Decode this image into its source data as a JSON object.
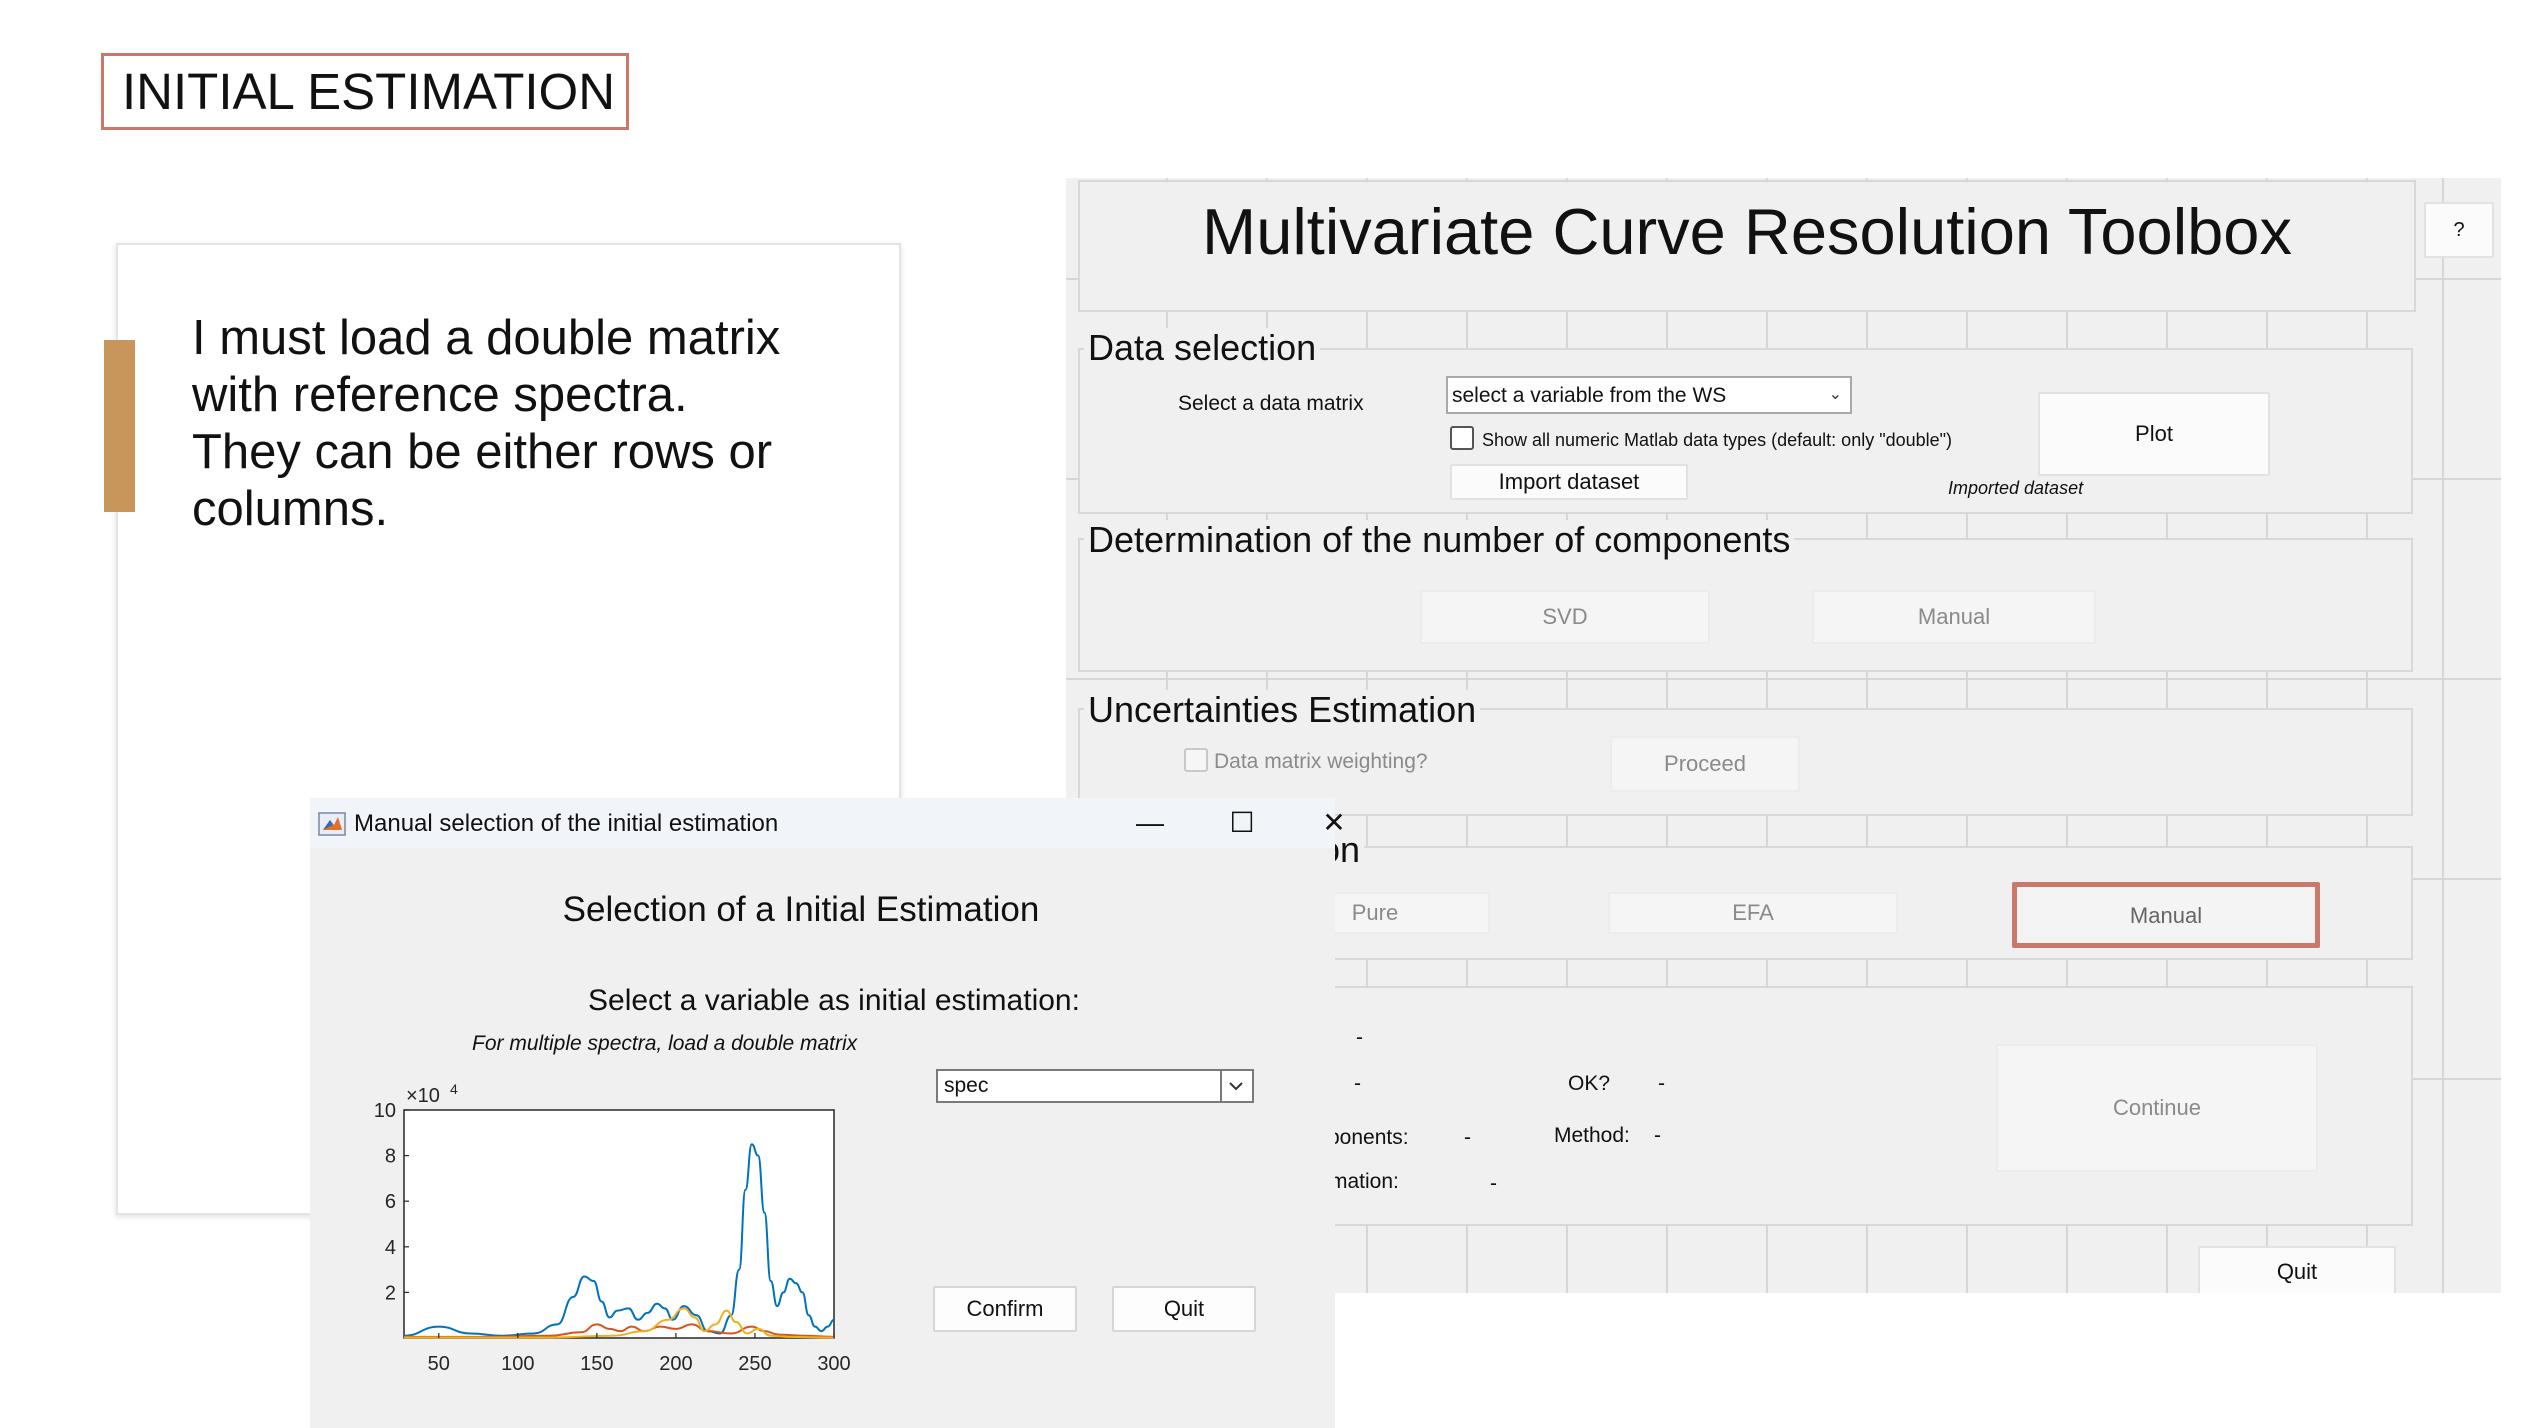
{
  "slide": {
    "title": "INITIAL ESTIMATION",
    "card_lines": [
      "I must load a double matrix",
      "with reference spectra.",
      "They can be either rows or",
      "columns."
    ],
    "accent_color": "#c8965a",
    "highlight_color": "#c9786c"
  },
  "mcr": {
    "title": "Multivariate Curve Resolution Toolbox",
    "help_label": "?",
    "data_selection": {
      "title": "Data selection",
      "select_label": "Select a data matrix",
      "dropdown_value": "select a variable from the WS",
      "checkbox_label": "Show all numeric Matlab data types (default: only \"double\")",
      "import_label": "Import dataset",
      "plot_label": "Plot",
      "imported_label": "Imported dataset"
    },
    "components": {
      "title": "Determination of the number of components",
      "svd_label": "SVD",
      "manual_label": "Manual"
    },
    "uncertainties": {
      "title": "Uncertainties Estimation",
      "weighting_label": "Data matrix weighting?",
      "proceed_label": "Proceed"
    },
    "initial": {
      "title_fragment": "on",
      "pure_label": "Pure",
      "efa_label": "EFA",
      "manual_label": "Manual"
    },
    "summary": {
      "dash1": "-",
      "dash2": "-",
      "ok_label": "OK?",
      "ok_value": "-",
      "components_label": "ponents:",
      "components_value": "-",
      "method_label": "Method:",
      "method_value": "-",
      "estimation_label": "mation:",
      "estimation_value": "-",
      "continue_label": "Continue"
    },
    "quit_label": "Quit"
  },
  "dialog": {
    "title": "Manual selection of the initial estimation",
    "minimize": "—",
    "maximize": "☐",
    "close": "✕",
    "heading": "Selection of a Initial Estimation",
    "subheading": "Select a variable as initial estimation:",
    "hint": "For multiple spectra, load a double matrix",
    "select_value": "spec",
    "confirm_label": "Confirm",
    "quit_label": "Quit"
  },
  "chart_data": {
    "type": "line",
    "title": "",
    "xlabel": "",
    "ylabel": "",
    "exponent_label": "×10",
    "exponent_power": "4",
    "xlim": [
      28,
      300
    ],
    "ylim": [
      0,
      10
    ],
    "x_ticks": [
      50,
      100,
      150,
      200,
      250,
      300
    ],
    "y_ticks": [
      2,
      4,
      6,
      8,
      10
    ],
    "grid": false,
    "series": [
      {
        "color": "#0072bd",
        "x": [
          28,
          50,
          70,
          90,
          110,
          125,
          135,
          142,
          148,
          153,
          158,
          163,
          170,
          176,
          182,
          188,
          193,
          198,
          205,
          213,
          220,
          228,
          235,
          240,
          244,
          248,
          252,
          256,
          260,
          264,
          268,
          272,
          276,
          280,
          284,
          288,
          292,
          296,
          300
        ],
        "y": [
          0.1,
          0.5,
          0.2,
          0.1,
          0.2,
          0.6,
          1.8,
          2.7,
          2.5,
          1.6,
          0.9,
          1.2,
          1.3,
          0.8,
          1.1,
          1.5,
          1.3,
          0.8,
          1.4,
          1.0,
          0.3,
          0.2,
          1.0,
          3.0,
          6.5,
          8.5,
          8.0,
          5.5,
          2.5,
          1.4,
          2.0,
          2.6,
          2.4,
          2.0,
          1.0,
          0.5,
          0.3,
          0.5,
          0.8
        ]
      },
      {
        "color": "#d95319",
        "x": [
          28,
          80,
          120,
          140,
          150,
          158,
          165,
          172,
          180,
          190,
          200,
          210,
          220,
          235,
          248,
          256,
          265,
          280,
          300
        ],
        "y": [
          0.05,
          0.05,
          0.1,
          0.25,
          0.6,
          0.4,
          0.3,
          0.5,
          0.3,
          0.5,
          0.4,
          0.6,
          0.3,
          0.2,
          0.5,
          0.3,
          0.15,
          0.1,
          0.05
        ]
      },
      {
        "color": "#edb120",
        "x": [
          28,
          120,
          160,
          180,
          195,
          205,
          212,
          218,
          225,
          232,
          238,
          245,
          252,
          260,
          270,
          300
        ],
        "y": [
          0.02,
          0.02,
          0.1,
          0.3,
          0.8,
          1.3,
          0.9,
          0.3,
          0.6,
          1.2,
          0.7,
          0.2,
          0.4,
          0.1,
          0.05,
          0.02
        ]
      }
    ]
  }
}
